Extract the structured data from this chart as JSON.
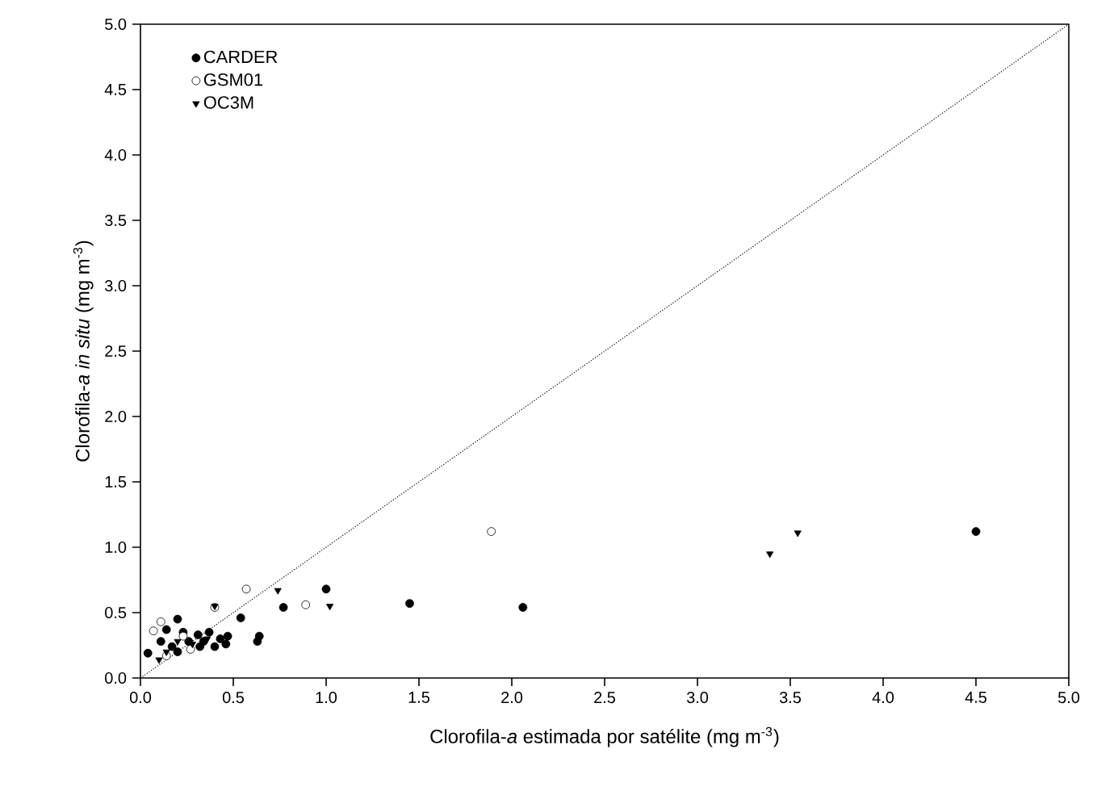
{
  "chart_data": {
    "type": "scatter",
    "xlabel": "Clorofila-*a* estimada por satélite (mg m$^{-3}$)",
    "ylabel": "Clorofila-*a in situ* (mg m$^{-3}$)",
    "xlim": [
      0,
      5
    ],
    "ylim": [
      0,
      5
    ],
    "xticks": [
      {
        "value": 0,
        "label": "0.0"
      },
      {
        "value": 0.5,
        "label": "0.5"
      },
      {
        "value": 1,
        "label": "1.0"
      },
      {
        "value": 1.5,
        "label": "1.5"
      },
      {
        "value": 2,
        "label": "2.0"
      },
      {
        "value": 2.5,
        "label": "2.5"
      },
      {
        "value": 3,
        "label": "3.0"
      },
      {
        "value": 3.5,
        "label": "3.5"
      },
      {
        "value": 4,
        "label": "4.0"
      },
      {
        "value": 4.5,
        "label": "4.5"
      },
      {
        "value": 5,
        "label": "5.0"
      }
    ],
    "yticks": [
      {
        "value": 0,
        "label": "0.0"
      },
      {
        "value": 0.5,
        "label": "0.5"
      },
      {
        "value": 1,
        "label": "1.0"
      },
      {
        "value": 1.5,
        "label": "1.5"
      },
      {
        "value": 2,
        "label": "2.0"
      },
      {
        "value": 2.5,
        "label": "2.5"
      },
      {
        "value": 3,
        "label": "3.0"
      },
      {
        "value": 3.5,
        "label": "3.5"
      },
      {
        "value": 4,
        "label": "4.0"
      },
      {
        "value": 4.5,
        "label": "4.5"
      },
      {
        "value": 5,
        "label": "5.0"
      }
    ],
    "legend": "top left",
    "grid": false,
    "series": [
      {
        "name": "CARDER",
        "color": "#000000",
        "marker": "circle",
        "x": [
          0.04,
          0.54,
          0.77,
          1.0,
          1.45,
          0.63,
          0.64,
          0.2,
          0.11,
          0.23,
          0.31,
          0.37,
          0.43,
          0.47,
          0.4,
          0.32,
          0.17,
          0.14,
          0.34,
          0.46,
          0.26,
          0.2,
          2.06,
          4.5
        ],
        "values": [
          0.19,
          0.46,
          0.54,
          0.68,
          0.57,
          0.28,
          0.32,
          0.45,
          0.28,
          0.35,
          0.33,
          0.35,
          0.3,
          0.32,
          0.24,
          0.24,
          0.24,
          0.37,
          0.28,
          0.26,
          0.28,
          0.2,
          0.54,
          1.12
        ]
      },
      {
        "name": "GSM01",
        "color": "#ffffff",
        "marker": "circle",
        "x": [
          1.89,
          0.57,
          0.89,
          0.4,
          0.07,
          0.11,
          0.27,
          0.14,
          0.23
        ],
        "values": [
          1.12,
          0.68,
          0.56,
          0.54,
          0.36,
          0.43,
          0.22,
          0.17,
          0.32
        ]
      },
      {
        "name": "OC3M",
        "color": "#000000",
        "marker": "triangle",
        "x": [
          3.39,
          3.54,
          0.74,
          1.02,
          0.4,
          0.1,
          0.14,
          0.2,
          0.28,
          0.36
        ],
        "values": [
          0.95,
          1.11,
          0.67,
          0.55,
          0.55,
          0.14,
          0.2,
          0.28,
          0.26,
          0.3
        ]
      },
      {
        "type": "line",
        "color": "#000000",
        "line_style": "dotted",
        "marker": "none",
        "x": [
          0,
          5
        ],
        "values": [
          0,
          5
        ]
      }
    ]
  }
}
